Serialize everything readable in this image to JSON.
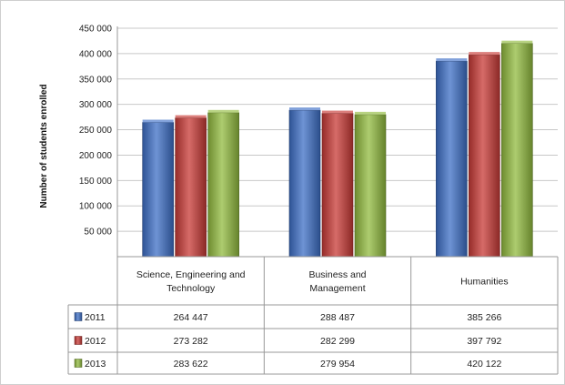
{
  "chart_data": {
    "type": "bar",
    "title": "",
    "xlabel": "",
    "ylabel": "Number of students enrolled",
    "ylim": [
      0,
      450000
    ],
    "yticks": [
      50000,
      100000,
      150000,
      200000,
      250000,
      300000,
      350000,
      400000,
      450000
    ],
    "ytick_labels": [
      "50 000",
      "100 000",
      "150 000",
      "200 000",
      "250 000",
      "300 000",
      "350 000",
      "400 000",
      "450 000"
    ],
    "grid": true,
    "categories": [
      "Science, Engineering and Technology",
      "Business and Management",
      "Humanities"
    ],
    "category_label_lines": [
      [
        "Science, Engineering and",
        "Technology"
      ],
      [
        "Business and",
        "Management"
      ],
      [
        "Humanities"
      ]
    ],
    "series": [
      {
        "name": "2011",
        "color": "#3d6fc6",
        "values": [
          264447,
          288487,
          385266
        ],
        "value_labels": [
          "264 447",
          "288 487",
          "385 266"
        ]
      },
      {
        "name": "2012",
        "color": "#c83a36",
        "values": [
          273282,
          282299,
          397792
        ],
        "value_labels": [
          "273 282",
          "282 299",
          "397 792"
        ]
      },
      {
        "name": "2013",
        "color": "#92bb3f",
        "values": [
          283622,
          279954,
          420122
        ],
        "value_labels": [
          "283 622",
          "279 954",
          "420 122"
        ]
      }
    ],
    "legend": "data-table-left"
  }
}
